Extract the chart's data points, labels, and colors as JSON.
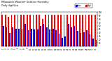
{
  "title": "Milwaukee Weather Outdoor Humidity",
  "subtitle": "Daily High/Low",
  "high_values": [
    93,
    93,
    87,
    93,
    93,
    93,
    93,
    93,
    93,
    93,
    93,
    93,
    93,
    80,
    93,
    93,
    93,
    93,
    93,
    93,
    93,
    93,
    93,
    93,
    93,
    93,
    93,
    93,
    93,
    93,
    93
  ],
  "low_values": [
    60,
    55,
    40,
    55,
    52,
    52,
    52,
    65,
    48,
    52,
    50,
    50,
    60,
    65,
    55,
    50,
    52,
    48,
    38,
    25,
    30,
    65,
    55,
    60,
    45,
    40,
    42,
    48,
    35,
    22,
    18
  ],
  "x_labels": [
    "1",
    "2",
    "3",
    "4",
    "5",
    "6",
    "7",
    "8",
    "9",
    "10",
    "11",
    "12",
    "13",
    "14",
    "15",
    "16",
    "17",
    "18",
    "19",
    "20",
    "21",
    "22",
    "23",
    "24",
    "25",
    "26",
    "27",
    "28",
    "29",
    "30",
    "31"
  ],
  "ylim": [
    0,
    100
  ],
  "yticks": [
    10,
    20,
    30,
    40,
    50,
    60,
    70,
    80,
    90,
    100
  ],
  "high_color": "#ff0000",
  "low_color": "#0000ff",
  "bg_color": "#ffffff",
  "legend_high": "High",
  "legend_low": "Low",
  "bar_width": 0.4
}
